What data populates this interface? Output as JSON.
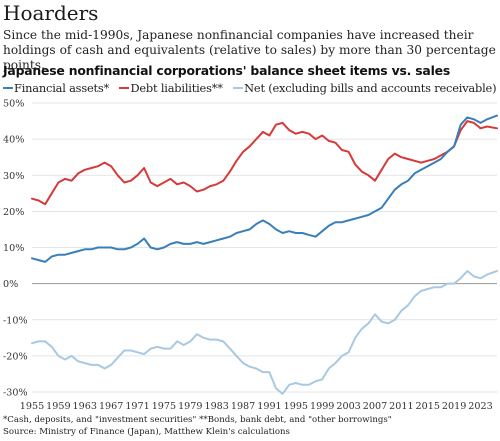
{
  "header": {
    "title": "Hoarders",
    "subtitle": "Since the mid-1990s, Japanese nonfinancial companies have increased their holdings of cash and equivalents (relative to sales) by more than 30 percentage points."
  },
  "footnotes": {
    "line1": "*Cash, deposits, and \"investment securities\"  **Bonds, bank debt, and \"other borrowings\"",
    "line2": "Source: Ministry of Finance (Japan), Matthew Klein's calculations"
  },
  "colors": {
    "financial": "#3a7fb8",
    "debt": "#d63a3a",
    "net": "#a9c8e2",
    "grid": "#dcdcdc",
    "zero": "#999999"
  },
  "chart_data": {
    "type": "line",
    "title": "Japanese nonfinancial corporations' balance sheet items vs. sales",
    "xlabel": "",
    "ylabel": "",
    "xlim": [
      1955,
      2025.5
    ],
    "ylim": [
      -30,
      50
    ],
    "x_ticks": [
      "1955",
      "1959",
      "1963",
      "1967",
      "1971",
      "1975",
      "1979",
      "1983",
      "1987",
      "1991",
      "1995",
      "1999",
      "2003",
      "2007",
      "2011",
      "2015",
      "2019",
      "2023"
    ],
    "y_ticks": [
      "50%",
      "40%",
      "30%",
      "20%",
      "10%",
      "0%",
      "-10%",
      "-20%",
      "-30%"
    ],
    "grid": true,
    "legend_position": "top",
    "series": [
      {
        "name": "Financial assets*",
        "x": [
          1955,
          1956,
          1957,
          1958,
          1959,
          1960,
          1961,
          1962,
          1963,
          1964,
          1965,
          1966,
          1967,
          1968,
          1969,
          1970,
          1971,
          1972,
          1973,
          1974,
          1975,
          1976,
          1977,
          1978,
          1979,
          1980,
          1981,
          1982,
          1983,
          1984,
          1985,
          1986,
          1987,
          1988,
          1989,
          1990,
          1991,
          1992,
          1993,
          1994,
          1995,
          1996,
          1997,
          1998,
          1999,
          2000,
          2001,
          2002,
          2003,
          2004,
          2005,
          2006,
          2007,
          2008,
          2009,
          2010,
          2011,
          2012,
          2013,
          2014,
          2015,
          2016,
          2017,
          2018,
          2019,
          2020,
          2021,
          2022,
          2023,
          2024,
          2025.5
        ],
        "values": [
          7.0,
          6.5,
          6.0,
          7.5,
          8.0,
          8.0,
          8.5,
          9.0,
          9.5,
          9.5,
          10.0,
          10.0,
          10.0,
          9.5,
          9.5,
          10.0,
          11.0,
          12.5,
          10.0,
          9.5,
          10.0,
          11.0,
          11.5,
          11.0,
          11.0,
          11.5,
          11.0,
          11.5,
          12.0,
          12.5,
          13.0,
          14.0,
          14.5,
          15.0,
          16.5,
          17.5,
          16.5,
          15.0,
          14.0,
          14.5,
          14.0,
          14.0,
          13.5,
          13.0,
          14.5,
          16.0,
          17.0,
          17.0,
          17.5,
          18.0,
          18.5,
          19.0,
          20.0,
          21.0,
          23.5,
          26.0,
          27.5,
          28.5,
          30.5,
          31.5,
          32.5,
          33.5,
          34.5,
          36.5,
          38.0,
          44.0,
          46.0,
          45.5,
          44.5,
          45.5,
          46.5
        ]
      },
      {
        "name": "Debt liabilities**",
        "x": [
          1955,
          1956,
          1957,
          1958,
          1959,
          1960,
          1961,
          1962,
          1963,
          1964,
          1965,
          1966,
          1967,
          1968,
          1969,
          1970,
          1971,
          1972,
          1973,
          1974,
          1975,
          1976,
          1977,
          1978,
          1979,
          1980,
          1981,
          1982,
          1983,
          1984,
          1985,
          1986,
          1987,
          1988,
          1989,
          1990,
          1991,
          1992,
          1993,
          1994,
          1995,
          1996,
          1997,
          1998,
          1999,
          2000,
          2001,
          2002,
          2003,
          2004,
          2005,
          2006,
          2007,
          2008,
          2009,
          2010,
          2011,
          2012,
          2013,
          2014,
          2015,
          2016,
          2017,
          2018,
          2019,
          2020,
          2021,
          2022,
          2023,
          2024,
          2025.5
        ],
        "values": [
          23.5,
          23.0,
          22.0,
          25.0,
          28.0,
          29.0,
          28.5,
          30.5,
          31.5,
          32.0,
          32.5,
          33.5,
          32.5,
          30.0,
          28.0,
          28.5,
          30.0,
          32.0,
          28.0,
          27.0,
          28.0,
          29.0,
          27.5,
          28.0,
          27.0,
          25.5,
          26.0,
          27.0,
          27.5,
          28.5,
          31.0,
          34.0,
          36.5,
          38.0,
          40.0,
          42.0,
          41.0,
          44.0,
          44.5,
          42.5,
          41.5,
          42.0,
          41.5,
          40.0,
          41.0,
          39.5,
          39.0,
          37.0,
          36.5,
          33.0,
          31.0,
          30.0,
          28.5,
          31.5,
          34.5,
          36.0,
          35.0,
          34.5,
          34.0,
          33.5,
          34.0,
          34.5,
          35.5,
          36.5,
          38.0,
          42.5,
          45.0,
          44.5,
          43.0,
          43.5,
          43.0
        ]
      },
      {
        "name": "Net (excluding bills and accounts receivable)",
        "x": [
          1955,
          1956,
          1957,
          1958,
          1959,
          1960,
          1961,
          1962,
          1963,
          1964,
          1965,
          1966,
          1967,
          1968,
          1969,
          1970,
          1971,
          1972,
          1973,
          1974,
          1975,
          1976,
          1977,
          1978,
          1979,
          1980,
          1981,
          1982,
          1983,
          1984,
          1985,
          1986,
          1987,
          1988,
          1989,
          1990,
          1991,
          1992,
          1993,
          1994,
          1995,
          1996,
          1997,
          1998,
          1999,
          2000,
          2001,
          2002,
          2003,
          2004,
          2005,
          2006,
          2007,
          2008,
          2009,
          2010,
          2011,
          2012,
          2013,
          2014,
          2015,
          2016,
          2017,
          2018,
          2019,
          2020,
          2021,
          2022,
          2023,
          2024,
          2025.5
        ],
        "values": [
          -16.5,
          -16.0,
          -16.0,
          -17.5,
          -20.0,
          -21.0,
          -20.0,
          -21.5,
          -22.0,
          -22.5,
          -22.5,
          -23.5,
          -22.5,
          -20.5,
          -18.5,
          -18.5,
          -19.0,
          -19.5,
          -18.0,
          -17.5,
          -18.0,
          -18.0,
          -16.0,
          -17.0,
          -16.0,
          -14.0,
          -15.0,
          -15.5,
          -15.5,
          -16.0,
          -18.0,
          -20.0,
          -22.0,
          -23.0,
          -23.5,
          -24.5,
          -24.5,
          -29.0,
          -30.5,
          -28.0,
          -27.5,
          -28.0,
          -28.0,
          -27.0,
          -26.5,
          -23.5,
          -22.0,
          -20.0,
          -19.0,
          -15.0,
          -12.5,
          -11.0,
          -8.5,
          -10.5,
          -11.0,
          -10.0,
          -7.5,
          -6.0,
          -3.5,
          -2.0,
          -1.5,
          -1.0,
          -1.0,
          0.0,
          0.0,
          1.5,
          3.5,
          2.0,
          1.5,
          2.5,
          3.5
        ]
      }
    ]
  }
}
